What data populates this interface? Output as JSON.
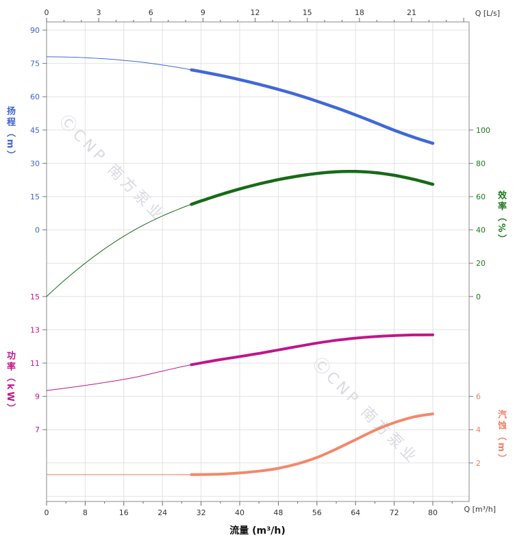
{
  "watermark": {
    "logo_glyph": "Ⓒ",
    "text": "CNP 南方泵业"
  },
  "chart_data": {
    "type": "line",
    "title": "",
    "grid": true,
    "legend": "none",
    "x_axis_bottom": {
      "label": "流量 (m³/h)",
      "unit_label": "Q [m³/h]",
      "ticks": [
        0,
        8,
        16,
        24,
        32,
        40,
        48,
        56,
        64,
        72,
        80
      ],
      "range": [
        0,
        87.5
      ]
    },
    "x_axis_top": {
      "unit_label": "Q [L/s]",
      "ticks": [
        0,
        3,
        6,
        9,
        12,
        15,
        18,
        21
      ],
      "range": [
        0,
        24.3
      ]
    },
    "axes": {
      "head": {
        "title": "扬程（m）",
        "color": "#3f63d0",
        "ticks": [
          90,
          75,
          60,
          45,
          30,
          15,
          0
        ],
        "tick_step": 15,
        "grid_start": 0,
        "side": "left"
      },
      "efficiency": {
        "title": "效率（%）",
        "color": "#1b7a1b",
        "ticks": [
          100,
          80,
          60,
          40,
          20,
          0
        ],
        "tick_step": 20,
        "grid_start": 3,
        "side": "right"
      },
      "power": {
        "title": "功率（kW）",
        "color": "#c0158a",
        "ticks": [
          15,
          13,
          11,
          9,
          7
        ],
        "tick_step": 2,
        "grid_start": 8,
        "side": "left"
      },
      "npsh": {
        "title": "汽蚀（m）",
        "color": "#f08064",
        "ticks": [
          6,
          4,
          2
        ],
        "tick_step": 2,
        "grid_start": 11,
        "side": "right"
      }
    },
    "series": [
      {
        "name": "head",
        "axis": "head",
        "color": "#4068d8",
        "width_thin": 1,
        "width_thick": 4.5,
        "split_q": 30,
        "points": [
          [
            0,
            78
          ],
          [
            4,
            77.9
          ],
          [
            8,
            77.6
          ],
          [
            12,
            77.1
          ],
          [
            16,
            76.4
          ],
          [
            20,
            75.5
          ],
          [
            24,
            74.3
          ],
          [
            28,
            72.9
          ],
          [
            30,
            72.1
          ],
          [
            32,
            71.3
          ],
          [
            36,
            69.6
          ],
          [
            40,
            67.7
          ],
          [
            44,
            65.6
          ],
          [
            48,
            63.3
          ],
          [
            52,
            60.8
          ],
          [
            56,
            58
          ],
          [
            60,
            55
          ],
          [
            64,
            51.8
          ],
          [
            68,
            48.4
          ],
          [
            72,
            44.9
          ],
          [
            76,
            41.8
          ],
          [
            80,
            39
          ]
        ]
      },
      {
        "name": "efficiency",
        "axis": "efficiency",
        "color": "#166b16",
        "width_thin": 1,
        "width_thick": 4.5,
        "split_q": 30,
        "points": [
          [
            0,
            0
          ],
          [
            4,
            10.5
          ],
          [
            8,
            20
          ],
          [
            12,
            28.6
          ],
          [
            16,
            36.2
          ],
          [
            20,
            42.8
          ],
          [
            24,
            48.4
          ],
          [
            28,
            53.2
          ],
          [
            30,
            55.4
          ],
          [
            32,
            57.4
          ],
          [
            36,
            61.2
          ],
          [
            40,
            64.6
          ],
          [
            44,
            67.6
          ],
          [
            48,
            70.2
          ],
          [
            52,
            72.3
          ],
          [
            56,
            73.9
          ],
          [
            60,
            74.9
          ],
          [
            64,
            75.1
          ],
          [
            68,
            74.4
          ],
          [
            72,
            72.8
          ],
          [
            76,
            70.4
          ],
          [
            80,
            67.4
          ]
        ]
      },
      {
        "name": "power",
        "axis": "power",
        "color": "#c0158a",
        "width_thin": 1,
        "width_thick": 4,
        "split_q": 30,
        "points": [
          [
            0,
            9.35
          ],
          [
            4,
            9.5
          ],
          [
            8,
            9.66
          ],
          [
            12,
            9.83
          ],
          [
            16,
            10.02
          ],
          [
            20,
            10.25
          ],
          [
            24,
            10.52
          ],
          [
            28,
            10.78
          ],
          [
            30,
            10.9
          ],
          [
            32,
            11.01
          ],
          [
            36,
            11.21
          ],
          [
            40,
            11.39
          ],
          [
            44,
            11.58
          ],
          [
            48,
            11.79
          ],
          [
            52,
            12
          ],
          [
            56,
            12.2
          ],
          [
            60,
            12.37
          ],
          [
            64,
            12.5
          ],
          [
            68,
            12.59
          ],
          [
            72,
            12.65
          ],
          [
            76,
            12.69
          ],
          [
            80,
            12.7
          ]
        ]
      },
      {
        "name": "npsh",
        "axis": "npsh",
        "color": "#f4876b",
        "width_thin": 1.2,
        "width_thick": 4,
        "split_q": 30,
        "points": [
          [
            0,
            1.3
          ],
          [
            8,
            1.3
          ],
          [
            16,
            1.3
          ],
          [
            24,
            1.3
          ],
          [
            30,
            1.3
          ],
          [
            36,
            1.33
          ],
          [
            40,
            1.4
          ],
          [
            44,
            1.51
          ],
          [
            48,
            1.68
          ],
          [
            52,
            1.95
          ],
          [
            56,
            2.33
          ],
          [
            60,
            2.84
          ],
          [
            64,
            3.4
          ],
          [
            68,
            3.96
          ],
          [
            72,
            4.42
          ],
          [
            76,
            4.76
          ],
          [
            80,
            4.95
          ]
        ]
      }
    ]
  }
}
